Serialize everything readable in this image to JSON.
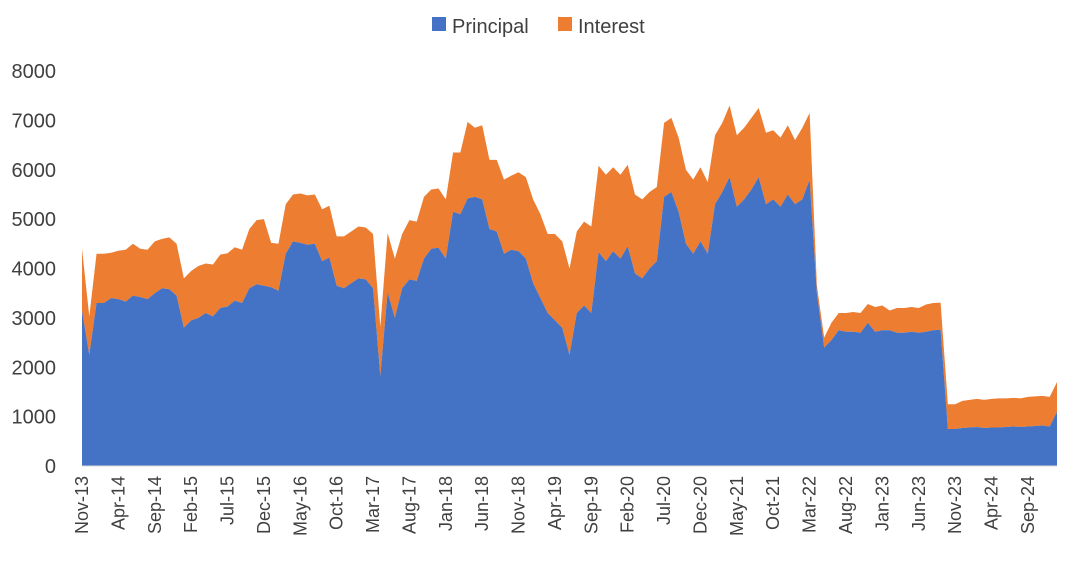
{
  "chart_data": {
    "type": "area",
    "stacked": true,
    "legend_position": "top",
    "grid": false,
    "ylim": [
      0,
      8000
    ],
    "yticks": [
      "0",
      "1000",
      "2000",
      "3000",
      "4000",
      "5000",
      "6000",
      "7000",
      "8000"
    ],
    "x_start": "Nov-13",
    "xtick_labels": [
      "Nov-13",
      "Apr-14",
      "Sep-14",
      "Feb-15",
      "Jul-15",
      "Dec-15",
      "May-16",
      "Oct-16",
      "Mar-17",
      "Aug-17",
      "Jan-18",
      "Jun-18",
      "Nov-18",
      "Apr-19",
      "Sep-19",
      "Feb-20",
      "Jul-20",
      "Dec-20",
      "May-21",
      "Oct-21",
      "Mar-22",
      "Aug-22",
      "Jan-23",
      "Jun-23",
      "Nov-23",
      "Apr-24",
      "Sep-24"
    ],
    "series": [
      {
        "name": "Principal",
        "color": "#4472C4",
        "values": [
          3150,
          2250,
          3300,
          3300,
          3400,
          3380,
          3330,
          3450,
          3420,
          3380,
          3500,
          3600,
          3580,
          3450,
          2800,
          2950,
          3000,
          3100,
          3030,
          3200,
          3230,
          3350,
          3300,
          3600,
          3680,
          3650,
          3620,
          3550,
          4300,
          4550,
          4520,
          4480,
          4500,
          4150,
          4220,
          3650,
          3600,
          3700,
          3800,
          3780,
          3600,
          1820,
          3520,
          3000,
          3600,
          3780,
          3750,
          4200,
          4400,
          4420,
          4200,
          5150,
          5100,
          5420,
          5450,
          5400,
          4800,
          4750,
          4300,
          4380,
          4350,
          4200,
          3700,
          3400,
          3100,
          2950,
          2800,
          2250,
          3100,
          3250,
          3100,
          4330,
          4150,
          4350,
          4200,
          4450,
          3900,
          3800,
          4000,
          4150,
          5450,
          5550,
          5150,
          4500,
          4300,
          4550,
          4300,
          5300,
          5550,
          5850,
          5250,
          5400,
          5600,
          5850,
          5300,
          5400,
          5250,
          5500,
          5300,
          5400,
          5800,
          3500,
          2400,
          2550,
          2750,
          2720,
          2720,
          2700,
          2900,
          2720,
          2750,
          2750,
          2700,
          2700,
          2720,
          2700,
          2720,
          2750,
          2760,
          750,
          750,
          770,
          780,
          790,
          770,
          780,
          780,
          790,
          800,
          790,
          800,
          810,
          820,
          800,
          1100
        ]
      },
      {
        "name": "Interest",
        "color": "#ED7D31",
        "values": [
          1250,
          780,
          1000,
          1000,
          920,
          980,
          1050,
          1050,
          980,
          1000,
          1050,
          1000,
          1050,
          1050,
          1000,
          1000,
          1050,
          1000,
          1050,
          1080,
          1080,
          1080,
          1080,
          1200,
          1300,
          1350,
          900,
          950,
          1000,
          950,
          1000,
          1000,
          1000,
          1050,
          1050,
          1000,
          1050,
          1050,
          1050,
          1050,
          1100,
          1000,
          1200,
          1200,
          1100,
          1200,
          1200,
          1250,
          1200,
          1200,
          1200,
          1200,
          1250,
          1550,
          1400,
          1500,
          1400,
          1450,
          1500,
          1500,
          1600,
          1650,
          1700,
          1700,
          1600,
          1750,
          1750,
          1750,
          1650,
          1700,
          1750,
          1750,
          1750,
          1700,
          1700,
          1650,
          1600,
          1600,
          1550,
          1500,
          1500,
          1500,
          1500,
          1500,
          1500,
          1500,
          1450,
          1400,
          1400,
          1450,
          1450,
          1450,
          1450,
          1400,
          1450,
          1400,
          1400,
          1400,
          1300,
          1450,
          1350,
          150,
          200,
          350,
          350,
          380,
          400,
          400,
          380,
          500,
          500,
          400,
          500,
          500,
          500,
          500,
          550,
          550,
          550,
          500,
          500,
          550,
          560,
          570,
          570,
          580,
          590,
          580,
          580,
          580,
          600,
          600,
          600,
          600,
          600,
          600,
          900
        ]
      }
    ]
  }
}
